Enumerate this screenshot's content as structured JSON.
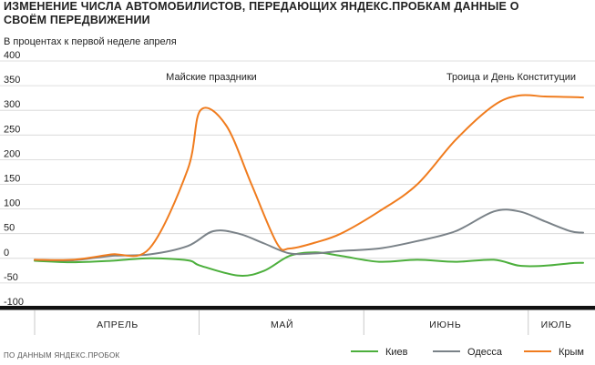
{
  "chart_data": {
    "type": "line",
    "title": "Изменение числа автомобилистов, передающих Яндекс.Пробкам данные о своём передвижении",
    "subtitle": "В процентах к первой неделе апреля",
    "source": "ПО ДАННЫМ ЯНДЕКС.ПРОБОК",
    "ylim": [
      -100,
      400
    ],
    "yticks": [
      -100,
      -50,
      0,
      50,
      100,
      150,
      200,
      250,
      300,
      350,
      400
    ],
    "ytick_labels": [
      "-100",
      "-50",
      "0",
      "50",
      "100",
      "150",
      "200",
      "250",
      "300",
      "350",
      "400"
    ],
    "grid": true,
    "legend_position": "bottom-right",
    "month_labels": [
      "АПРЕЛЬ",
      "МАЙ",
      "ИЮНЬ",
      "ИЮЛЬ"
    ],
    "annotations": [
      "Майские праздники",
      "Троица и День Конституции"
    ],
    "series": [
      {
        "name": "Киев",
        "color": "#4caf3c",
        "points": [
          [
            0,
            -5
          ],
          [
            3,
            -8
          ],
          [
            6,
            -5
          ],
          [
            9,
            0
          ],
          [
            12,
            -4
          ],
          [
            13,
            -15
          ],
          [
            16,
            -35
          ],
          [
            18,
            -25
          ],
          [
            20,
            5
          ],
          [
            22,
            12
          ],
          [
            24,
            5
          ],
          [
            27,
            -7
          ],
          [
            30,
            -3
          ],
          [
            33,
            -7
          ],
          [
            36,
            -3
          ],
          [
            38,
            -15
          ],
          [
            40,
            -15
          ],
          [
            42,
            -10
          ],
          [
            43,
            -9
          ]
        ]
      },
      {
        "name": "Одесса",
        "color": "#7a8288",
        "points": [
          [
            0,
            -3
          ],
          [
            3,
            -4
          ],
          [
            6,
            5
          ],
          [
            9,
            8
          ],
          [
            12,
            25
          ],
          [
            14,
            55
          ],
          [
            16,
            50
          ],
          [
            18,
            30
          ],
          [
            20,
            10
          ],
          [
            22,
            10
          ],
          [
            24,
            15
          ],
          [
            27,
            20
          ],
          [
            30,
            35
          ],
          [
            33,
            55
          ],
          [
            36,
            95
          ],
          [
            38,
            95
          ],
          [
            40,
            75
          ],
          [
            42,
            55
          ],
          [
            43,
            52
          ]
        ]
      },
      {
        "name": "Крым",
        "color": "#f07c1e",
        "points": [
          [
            0,
            -3
          ],
          [
            3,
            -3
          ],
          [
            6,
            8
          ],
          [
            9,
            20
          ],
          [
            12,
            180
          ],
          [
            13,
            300
          ],
          [
            15,
            270
          ],
          [
            17,
            150
          ],
          [
            19,
            30
          ],
          [
            20,
            20
          ],
          [
            22,
            32
          ],
          [
            24,
            50
          ],
          [
            27,
            95
          ],
          [
            30,
            150
          ],
          [
            33,
            240
          ],
          [
            36,
            310
          ],
          [
            38,
            330
          ],
          [
            40,
            328
          ],
          [
            42,
            327
          ],
          [
            43,
            326
          ]
        ]
      }
    ]
  }
}
